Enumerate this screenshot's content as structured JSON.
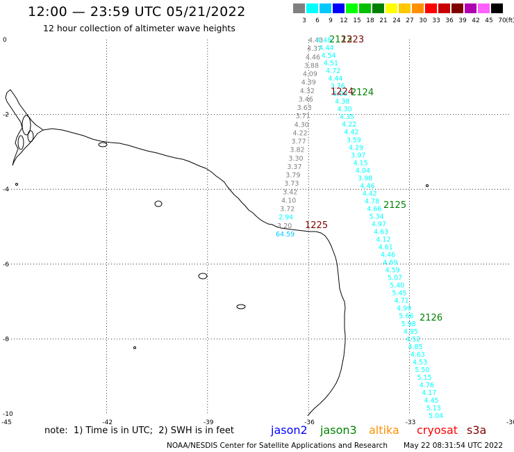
{
  "header": {
    "title": "12:00 — 23:59 UTC 05/21/2022",
    "subtitle": "12 hour collection of altimeter wave heights"
  },
  "legend": {
    "unit": "(ft)",
    "bins": [
      {
        "label": "3",
        "color": "#808080"
      },
      {
        "label": "6",
        "color": "#00ffff"
      },
      {
        "label": "9",
        "color": "#00c8ff"
      },
      {
        "label": "12",
        "color": "#0000ff"
      },
      {
        "label": "15",
        "color": "#00ff00"
      },
      {
        "label": "18",
        "color": "#00c000"
      },
      {
        "label": "21",
        "color": "#008000"
      },
      {
        "label": "24",
        "color": "#ffff00"
      },
      {
        "label": "27",
        "color": "#ffc800"
      },
      {
        "label": "30",
        "color": "#ff9000"
      },
      {
        "label": "33",
        "color": "#ff0000"
      },
      {
        "label": "36",
        "color": "#c80000"
      },
      {
        "label": "39",
        "color": "#800000"
      },
      {
        "label": "42",
        "color": "#b000b0"
      },
      {
        "label": "45",
        "color": "#ff60ff"
      },
      {
        "label": "70",
        "color": "#000000"
      }
    ]
  },
  "axes": {
    "lon_labels": [
      "-45",
      "-42",
      "-39",
      "-36",
      "-33",
      "-30"
    ],
    "lat_labels": [
      "0",
      "-2",
      "-4",
      "-6",
      "-8",
      "-10"
    ]
  },
  "tracks": {
    "left": [
      "4.43",
      "4.37",
      "4.46",
      "3.88",
      "4.09",
      "4.39",
      "4.32",
      "3.46",
      "3.63",
      "3.71",
      "4.30",
      "4.22",
      "3.77",
      "3.82",
      "3.30",
      "3.37",
      "3.79",
      "3.73",
      "3.42",
      "4.10",
      "3.72",
      "2.94",
      "3.20",
      "64.59"
    ],
    "left_bins": [
      0,
      0,
      0,
      0,
      0,
      0,
      0,
      0,
      0,
      0,
      0,
      0,
      0,
      0,
      0,
      0,
      0,
      0,
      0,
      0,
      0,
      1,
      0,
      2
    ],
    "right": [
      "4.48",
      "4.44",
      "4.54",
      "4.51",
      "4.72",
      "4.44",
      "3.76",
      "5.00",
      "4.38",
      "4.30",
      "4.35",
      "4.22",
      "4.42",
      "3.59",
      "4.29",
      "3.97",
      "4.15",
      "4.04",
      "3.98",
      "4.46",
      "4.42",
      "4.78",
      "4.66",
      "5.34",
      "4.97",
      "4.63",
      "4.12",
      "4.61",
      "4.46",
      "4.69",
      "4.59",
      "5.07",
      "5.40",
      "5.45",
      "4.71",
      "4.99",
      "5.66",
      "5.98",
      "4.95",
      "4.52",
      "4.85",
      "4.63",
      "4.53",
      "5.50",
      "5.15",
      "4.76",
      "4.17",
      "4.45",
      "5.13",
      "5.04"
    ],
    "times": [
      {
        "label": "2123",
        "color": "#008000"
      },
      {
        "label": "1223",
        "color": "#800000"
      },
      {
        "label": "1224",
        "color": "#800000"
      },
      {
        "label": "2124",
        "color": "#008000"
      },
      {
        "label": "2125",
        "color": "#008000"
      },
      {
        "label": "1225",
        "color": "#800000"
      },
      {
        "label": "2126",
        "color": "#008000"
      }
    ]
  },
  "footer": {
    "note": "note:  1) Time is in UTC;  2) SWH is in feet",
    "satellites": [
      {
        "label": "jason2",
        "color": "#0000ff"
      },
      {
        "label": "jason3",
        "color": "#008000"
      },
      {
        "label": "altika",
        "color": "#ff9000"
      },
      {
        "label": "cryosat",
        "color": "#ff0000"
      },
      {
        "label": "s3a",
        "color": "#800000"
      }
    ],
    "credit": "NOAA/NESDIS Center for Satellite Applications and Research",
    "timestamp": "May 22 08:31:54 UTC 2022"
  }
}
